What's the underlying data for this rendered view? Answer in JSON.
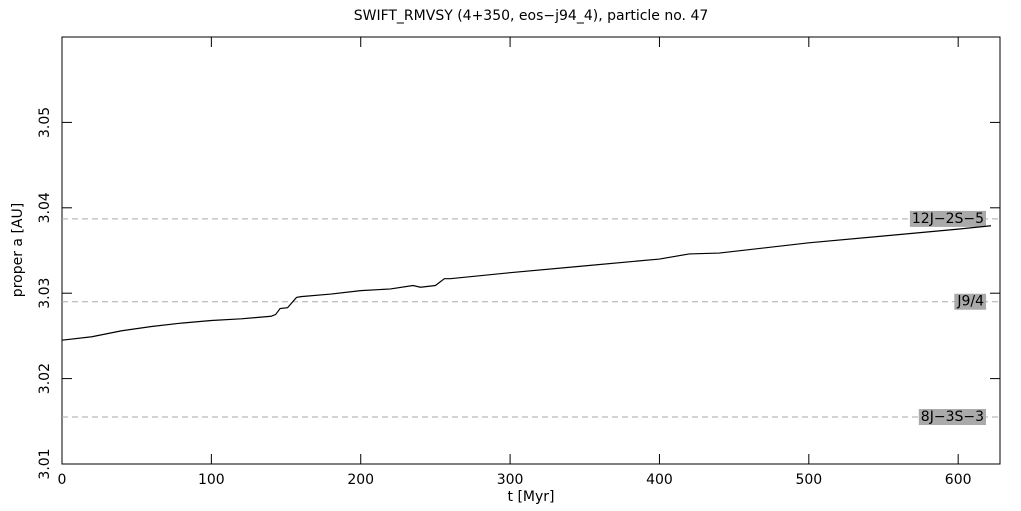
{
  "chart_data": {
    "type": "line",
    "title": "SWIFT_RMVSY (4+350, eos−j94_4), particle no. 47",
    "xlabel": "t [Myr]",
    "ylabel": "proper a [AU]",
    "x": [
      0,
      20,
      40,
      60,
      80,
      100,
      120,
      140,
      143,
      146,
      151,
      157,
      160,
      180,
      200,
      220,
      235,
      240,
      250,
      256,
      260,
      300,
      350,
      400,
      420,
      440,
      500,
      550,
      600,
      622
    ],
    "series": [
      {
        "color": "#000000",
        "values": [
          3.0245,
          3.0249,
          3.0256,
          3.0261,
          3.0265,
          3.0268,
          3.027,
          3.0273,
          3.0275,
          3.0282,
          3.0283,
          3.0295,
          3.0296,
          3.0299,
          3.0303,
          3.0305,
          3.0309,
          3.0307,
          3.0309,
          3.0317,
          3.0317,
          3.0324,
          3.0332,
          3.034,
          3.0346,
          3.0347,
          3.0359,
          3.0367,
          3.0375,
          3.0379
        ]
      }
    ],
    "resonances": [
      {
        "name": "12J−2S−5",
        "value": 3.0387
      },
      {
        "name": "J9/4",
        "value": 3.029
      },
      {
        "name": "8J−3S−3",
        "value": 3.0155
      }
    ],
    "xlim": [
      0,
      628
    ],
    "ylim": [
      3.01,
      3.06
    ],
    "xticks": [
      0,
      100,
      200,
      300,
      400,
      500,
      600
    ],
    "yticks": [
      3.01,
      3.02,
      3.03,
      3.04,
      3.05
    ]
  }
}
